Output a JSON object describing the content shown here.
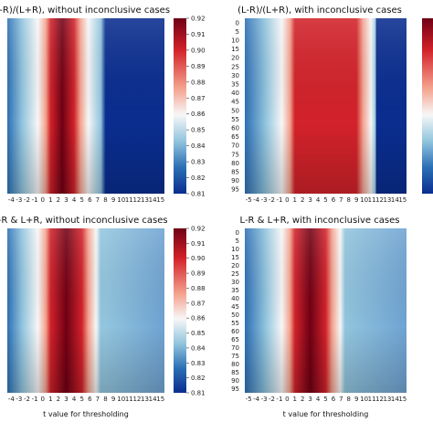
{
  "chart_data": [
    {
      "type": "heatmap",
      "title": "(L-R)/(L+R), without inconclusive cases",
      "xlabel": "",
      "x_ticks": [
        "-4",
        "-3",
        "-2",
        "-1",
        "0",
        "1",
        "2",
        "3",
        "4",
        "5",
        "6",
        "7",
        "8",
        "9",
        "10",
        "11",
        "12",
        "13",
        "14",
        "15"
      ],
      "y_ticks": [],
      "colorbar": {
        "min": 0.81,
        "max": 0.92,
        "ticks": [
          "0.92",
          "0.91",
          "0.90",
          "0.89",
          "0.88",
          "0.87",
          "0.86",
          "0.85",
          "0.84",
          "0.83",
          "0.82",
          "0.81"
        ]
      },
      "hot_region_x": [
        1,
        4
      ],
      "cold_region_x_from": 8
    },
    {
      "type": "heatmap",
      "title": "(L-R)/(L+R), with inconclusive cases",
      "xlabel": "",
      "x_ticks": [
        "-5",
        "-4",
        "-3",
        "-2",
        "-1",
        "0",
        "1",
        "2",
        "3",
        "4",
        "5",
        "6",
        "7",
        "8",
        "9",
        "10",
        "11",
        "12",
        "13",
        "14",
        "15"
      ],
      "y_ticks": [
        "0",
        "5",
        "10",
        "15",
        "20",
        "25",
        "30",
        "35",
        "40",
        "45",
        "50",
        "55",
        "60",
        "65",
        "70",
        "75",
        "80",
        "85",
        "90",
        "95"
      ],
      "colorbar": null,
      "hot_region_x": [
        1,
        9
      ],
      "cold_region_x_from": 11
    },
    {
      "type": "heatmap",
      "title": "L-R & L+R, without inconclusive cases",
      "xlabel": "t value for thresholding",
      "x_ticks": [
        "-4",
        "-3",
        "-2",
        "-1",
        "0",
        "1",
        "2",
        "3",
        "4",
        "5",
        "6",
        "7",
        "8",
        "9",
        "10",
        "11",
        "12",
        "13",
        "14",
        "15"
      ],
      "y_ticks": [],
      "colorbar": {
        "min": 0.81,
        "max": 0.92,
        "ticks": [
          "0.92",
          "0.91",
          "0.90",
          "0.89",
          "0.88",
          "0.87",
          "0.86",
          "0.85",
          "0.84",
          "0.83",
          "0.82",
          "0.81"
        ]
      },
      "hot_region_x": [
        1,
        5
      ],
      "cold_region_x_from": 8
    },
    {
      "type": "heatmap",
      "title": "L-R & L+R, with inconclusive cases",
      "xlabel": "t value for thresholding",
      "x_ticks": [
        "-5",
        "-4",
        "-3",
        "-2",
        "-1",
        "0",
        "1",
        "2",
        "3",
        "4",
        "5",
        "6",
        "7",
        "8",
        "9",
        "10",
        "11",
        "12",
        "13",
        "14",
        "15"
      ],
      "y_ticks": [
        "0",
        "5",
        "10",
        "15",
        "20",
        "25",
        "30",
        "35",
        "40",
        "45",
        "50",
        "55",
        "60",
        "65",
        "70",
        "75",
        "80",
        "85",
        "90",
        "95"
      ],
      "colorbar": null,
      "hot_region_x": [
        1,
        5
      ],
      "cold_region_x_from": 7
    }
  ]
}
